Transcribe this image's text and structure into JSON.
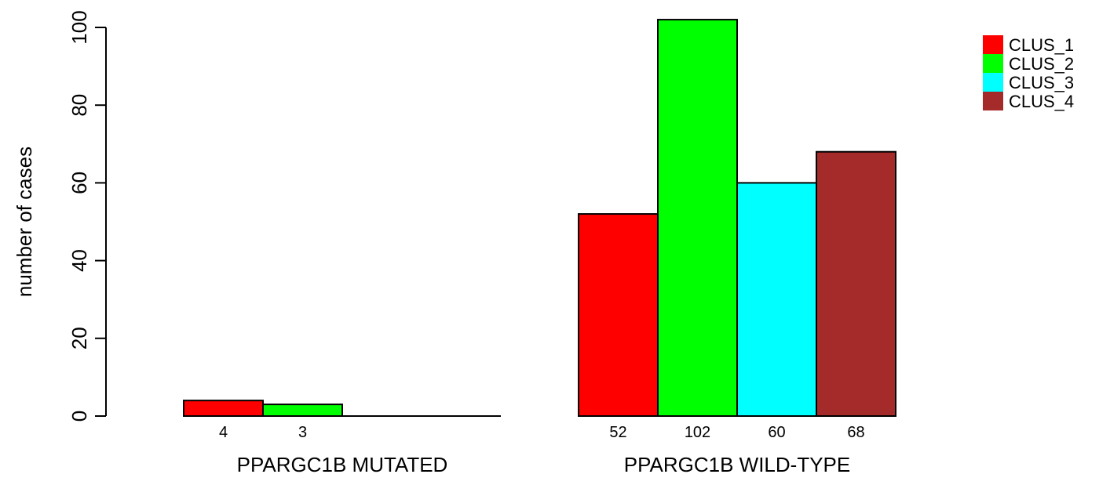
{
  "chart_data": {
    "type": "bar",
    "title": "",
    "xlabel": "",
    "ylabel": "number of cases",
    "ylim": [
      0,
      102
    ],
    "yticks": [
      0,
      20,
      40,
      60,
      80,
      100
    ],
    "ytick_labels": [
      "0",
      "20",
      "40",
      "60",
      "80",
      "100"
    ],
    "grid": false,
    "legend_position": "top-right",
    "categories": [
      "PPARGC1B MUTATED",
      "PPARGC1B WILD-TYPE"
    ],
    "series": [
      {
        "name": "CLUS_1",
        "color": "#ff0000",
        "values": [
          4,
          52
        ],
        "labels": [
          "4",
          "52"
        ]
      },
      {
        "name": "CLUS_2",
        "color": "#00ff00",
        "values": [
          3,
          102
        ],
        "labels": [
          "3",
          "102"
        ]
      },
      {
        "name": "CLUS_3",
        "color": "#00ffff",
        "values": [
          0,
          60
        ],
        "labels": [
          "",
          "60"
        ]
      },
      {
        "name": "CLUS_4",
        "color": "#a52a2a",
        "values": [
          0,
          68
        ],
        "labels": [
          "",
          "68"
        ]
      }
    ]
  }
}
